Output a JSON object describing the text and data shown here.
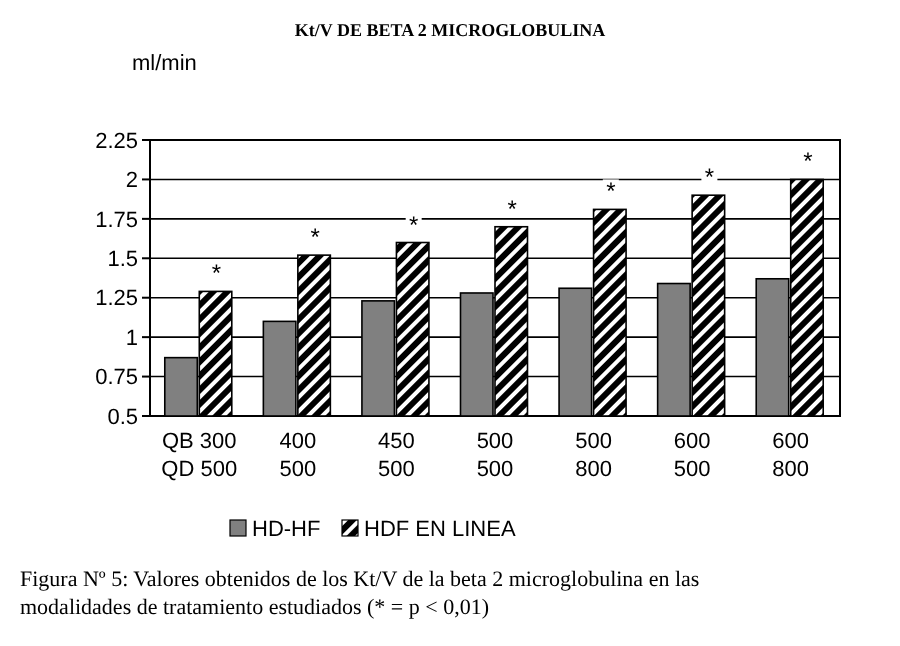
{
  "chart_data": {
    "type": "bar",
    "title": "Kt/V DE BETA 2 MICROGLOBULINA",
    "ylabel": "ml/min",
    "categories": [
      "QB 300\nQD 500",
      "400\n500",
      "450\n500",
      "500\n500",
      "500\n800",
      "600\n500",
      "600\n800"
    ],
    "series": [
      {
        "name": "HD-HF",
        "color": "#808080",
        "values": [
          0.87,
          1.1,
          1.23,
          1.28,
          1.31,
          1.34,
          1.37
        ]
      },
      {
        "name": "HDF EN LINEA",
        "color": "#000000",
        "values": [
          1.29,
          1.52,
          1.6,
          1.7,
          1.81,
          1.9,
          2.0
        ]
      }
    ],
    "ylim": [
      0.5,
      2.25
    ],
    "yticks": [
      0.5,
      0.75,
      1,
      1.25,
      1.5,
      1.75,
      2,
      2.25
    ],
    "grid": "y",
    "legend": "bottom",
    "annotations": [
      {
        "text": "*",
        "x": "QB 300\nQD 500",
        "y": 1.29
      },
      {
        "text": "*",
        "x": "400\n500",
        "y": 1.52
      },
      {
        "text": "*",
        "x": "450\n500",
        "y": 1.6
      },
      {
        "text": "*",
        "x": "500\n500",
        "y": 1.7
      },
      {
        "text": "*",
        "x": "500\n800",
        "y": 1.81
      },
      {
        "text": "*",
        "x": "600\n500",
        "y": 1.9
      },
      {
        "text": "*",
        "x": "600\n800",
        "y": 2.0
      },
      "Figura Nº 5: Valores obtenidos de los Kt/V de la beta 2 microglobulina en las modalidades de tratamiento estudiados  (* = p < 0,01)"
    ]
  }
}
